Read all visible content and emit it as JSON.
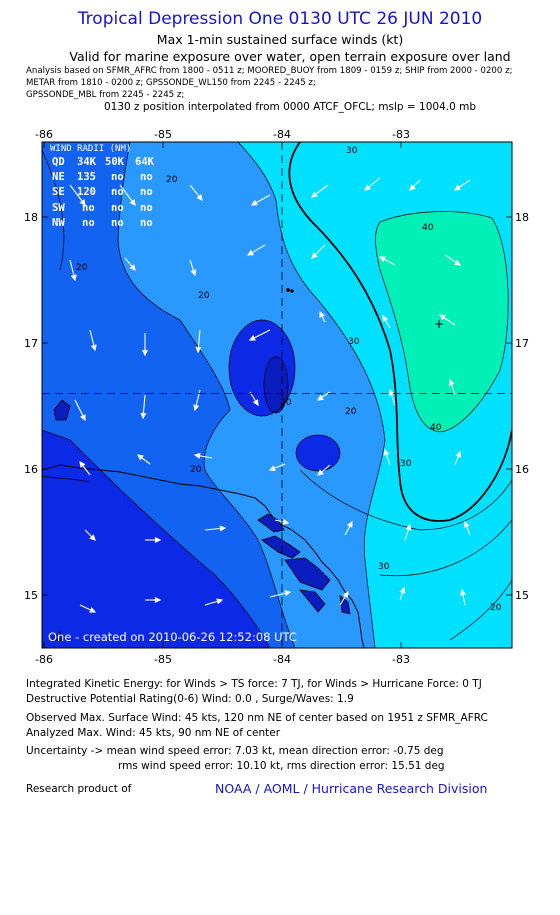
{
  "header": {
    "title": "Tropical Depression One 0130 UTC 26 JUN 2010",
    "subtitle": "Max 1-min sustained surface winds (kt)",
    "validity": "Valid for marine exposure over water, open terrain exposure over land",
    "analysis_lines": [
      "Analysis based on   SFMR_AFRC from 1800 - 0511 z;  MOORED_BUOY from 1809 - 0159 z;  SHIP from 2000 - 0200 z;",
      "METAR from 1810 - 0200 z;  GPSSONDE_WL150 from 2245 - 2245 z;",
      "GPSSONDE_MBL from 2245 - 2245 z;"
    ],
    "interpolation": "0130 z position interpolated from 0000 ATCF_OFCL; mslp = 1004.0 mb"
  },
  "map": {
    "lon_labels": [
      "-86",
      "-85",
      "-84",
      "-83"
    ],
    "lat_labels": [
      "18",
      "17",
      "16",
      "15"
    ],
    "lon_values": [
      -86,
      -85,
      -84,
      -83
    ],
    "lat_values": [
      18,
      17,
      16,
      15
    ],
    "contour_labels": [
      "20",
      "20",
      "20",
      "20",
      "20",
      "20",
      "30",
      "30",
      "30",
      "40",
      "40",
      "30",
      "20"
    ],
    "creation_stamp": "One - created on 2010-06-26 12:52:08 UTC",
    "center_lon": -84.0,
    "center_lat": 16.6,
    "max_wind_marker": "+",
    "colors": {
      "lt10": "#0c2ae6",
      "c10_20": "#1363f3",
      "c20_30": "#2a99ff",
      "c30_40": "#00e0ff",
      "gt40": "#00f0b8"
    }
  },
  "wind_radii": {
    "title": "WIND RADII (NM)",
    "columns": [
      "QD",
      "34K",
      "50K",
      "64K"
    ],
    "rows": [
      [
        "NE",
        "135",
        "no",
        "no"
      ],
      [
        "SE",
        "120",
        "no",
        "no"
      ],
      [
        "SW",
        "no",
        "no",
        "no"
      ],
      [
        "NW",
        "no",
        "no",
        "no"
      ]
    ]
  },
  "footer": {
    "ike": "Integrated Kinetic Energy:  for Winds > TS force: 7 TJ,  for Winds > Hurricane Force: 0 TJ",
    "dpr": "Destructive Potential Rating(0-6)   Wind: 0.0 , Surge/Waves: 1.9",
    "observed": "Observed Max. Surface Wind: 45 kts, 120 nm NE of center based on 1951 z SFMR_AFRC",
    "analyzed": "Analyzed Max. Wind: 45 kts, 90 nm NE of center",
    "uncertainty1": "Uncertainty -> mean wind speed error: 7.03 kt,   mean direction error:  -0.75 deg",
    "uncertainty2": "rms wind speed error: 10.10 kt,   rms direction error: 15.51 deg",
    "credit_prefix": "Research product of",
    "credit_org": "NOAA / AOML / Hurricane Research Division"
  }
}
